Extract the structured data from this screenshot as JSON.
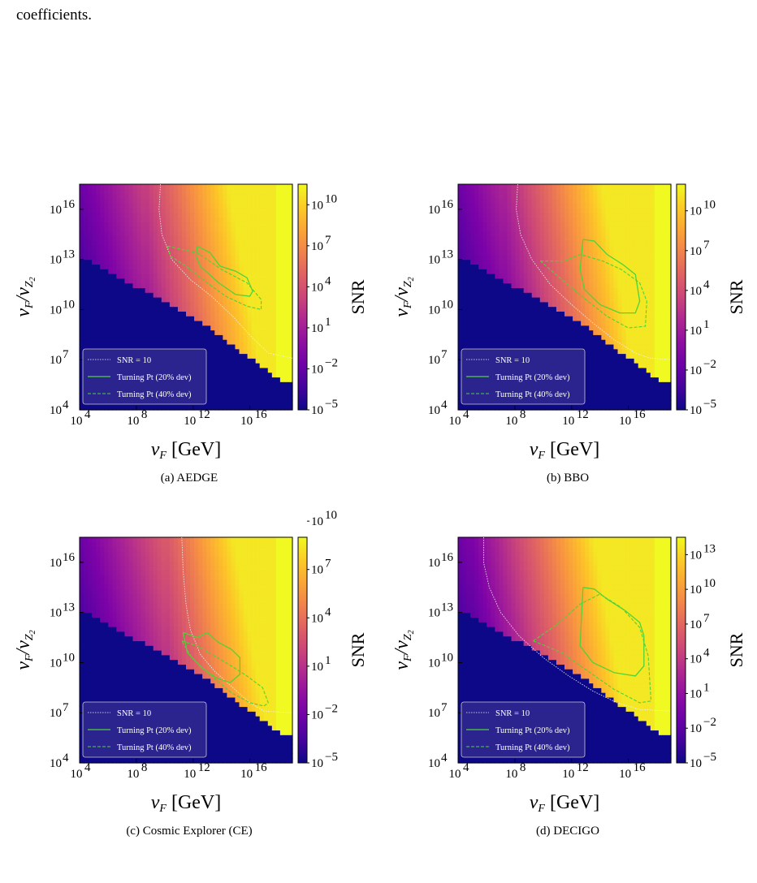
{
  "top_text": "coefficients.",
  "chart_data": [
    {
      "type": "heatmap",
      "caption": "(a) AEDGE",
      "xlabel": "v_F [GeV]",
      "ylabel": "v_F/v_{Z_2}",
      "colorbar_label": "SNR",
      "xlim_log10": [
        4,
        19
      ],
      "ylim_log10": [
        4,
        17.5
      ],
      "x_ticks": [
        {
          "exp": "4"
        },
        {
          "exp": "8"
        },
        {
          "exp": "12"
        },
        {
          "exp": "16"
        }
      ],
      "y_ticks": [
        {
          "exp": "4"
        },
        {
          "exp": "7"
        },
        {
          "exp": "10"
        },
        {
          "exp": "13"
        },
        {
          "exp": "16"
        }
      ],
      "colorbar_ticks": [
        {
          "exp": "−5"
        },
        {
          "exp": "−2"
        },
        {
          "exp": "1"
        },
        {
          "exp": "4"
        },
        {
          "exp": "7"
        },
        {
          "exp": "10"
        }
      ],
      "colorbar_range_log10": [
        -5,
        11.5
      ],
      "colormap": "plasma",
      "legend": {
        "placement": "lower-left",
        "entries": [
          "SNR = 10",
          "Turning Pt (20% dev)",
          "Turning Pt (40% dev)"
        ]
      },
      "snr10_contour": [
        [
          9.7,
          17.5
        ],
        [
          9.6,
          16
        ],
        [
          9.8,
          14.5
        ],
        [
          10.5,
          13
        ],
        [
          11.8,
          11.8
        ],
        [
          13.3,
          10.8
        ],
        [
          14.8,
          9.6
        ],
        [
          16.2,
          8.3
        ],
        [
          17.3,
          7.4
        ],
        [
          19,
          7.1
        ]
      ],
      "turning_20": [
        [
          12.3,
          13.8
        ],
        [
          13.2,
          13.4
        ],
        [
          13.9,
          12.6
        ],
        [
          15,
          12.3
        ],
        [
          15.8,
          11.9
        ],
        [
          16.2,
          11.1
        ],
        [
          16,
          10.8
        ],
        [
          15,
          10.9
        ],
        [
          13.8,
          11.6
        ],
        [
          12.5,
          12.6
        ],
        [
          12.2,
          13.2
        ],
        [
          12.3,
          13.8
        ]
      ],
      "turning_40": [
        [
          10.2,
          13.8
        ],
        [
          11.2,
          13.6
        ],
        [
          12.3,
          13.4
        ],
        [
          14,
          12.4
        ],
        [
          15.8,
          11.6
        ],
        [
          16.8,
          10.6
        ],
        [
          16.8,
          10.0
        ],
        [
          15.8,
          10.2
        ],
        [
          14.3,
          10.8
        ],
        [
          13,
          11.6
        ],
        [
          11.5,
          12.6
        ],
        [
          10.4,
          13.2
        ],
        [
          10.2,
          13.8
        ]
      ]
    },
    {
      "type": "heatmap",
      "caption": "(b) BBO",
      "xlabel": "v_F [GeV]",
      "ylabel": "v_F/v_{Z_2}",
      "colorbar_label": "SNR",
      "xlim_log10": [
        4,
        19
      ],
      "ylim_log10": [
        4,
        17.5
      ],
      "x_ticks": [
        {
          "exp": "4"
        },
        {
          "exp": "8"
        },
        {
          "exp": "12"
        },
        {
          "exp": "16"
        }
      ],
      "y_ticks": [
        {
          "exp": "4"
        },
        {
          "exp": "7"
        },
        {
          "exp": "10"
        },
        {
          "exp": "13"
        },
        {
          "exp": "16"
        }
      ],
      "colorbar_ticks": [
        {
          "exp": "−5"
        },
        {
          "exp": "−2"
        },
        {
          "exp": "1"
        },
        {
          "exp": "4"
        },
        {
          "exp": "7"
        },
        {
          "exp": "10"
        }
      ],
      "colorbar_range_log10": [
        -5,
        12
      ],
      "colormap": "plasma",
      "legend": {
        "placement": "lower-left",
        "entries": [
          "SNR = 10",
          "Turning Pt (20% dev)",
          "Turning Pt (40% dev)"
        ]
      },
      "snr10_contour": [
        [
          8.2,
          17.5
        ],
        [
          8.1,
          16
        ],
        [
          8.4,
          14.5
        ],
        [
          9.2,
          13
        ],
        [
          10.5,
          11.5
        ],
        [
          12,
          10.3
        ],
        [
          13.5,
          9.2
        ],
        [
          15,
          8.2
        ],
        [
          16.5,
          7.4
        ],
        [
          17.5,
          7.1
        ],
        [
          19,
          7
        ]
      ],
      "turning_20": [
        [
          12.8,
          14.2
        ],
        [
          13.6,
          14.1
        ],
        [
          14.5,
          13.3
        ],
        [
          15.6,
          12.7
        ],
        [
          16.5,
          12.1
        ],
        [
          16.8,
          10.5
        ],
        [
          16.5,
          9.8
        ],
        [
          15.4,
          9.8
        ],
        [
          14,
          10.3
        ],
        [
          12.9,
          11.2
        ],
        [
          12.6,
          12.4
        ],
        [
          12.8,
          14.2
        ]
      ],
      "turning_40": [
        [
          9.8,
          12.9
        ],
        [
          11.5,
          12.9
        ],
        [
          12.6,
          13.3
        ],
        [
          14.2,
          12.9
        ],
        [
          15.5,
          12.4
        ],
        [
          16.8,
          11.6
        ],
        [
          17.3,
          10.5
        ],
        [
          17.2,
          9.0
        ],
        [
          16,
          8.9
        ],
        [
          14.5,
          9.6
        ],
        [
          13,
          10.6
        ],
        [
          11.3,
          11.8
        ],
        [
          9.8,
          12.9
        ]
      ]
    },
    {
      "type": "heatmap",
      "caption": "(c) Cosmic Explorer (CE)",
      "xlabel": "v_F [GeV]",
      "ylabel": "v_F/v_{Z_2}",
      "colorbar_label": "SNR",
      "xlim_log10": [
        4,
        19
      ],
      "ylim_log10": [
        4,
        17.5
      ],
      "x_ticks": [
        {
          "exp": "4"
        },
        {
          "exp": "8"
        },
        {
          "exp": "12"
        },
        {
          "exp": "16"
        }
      ],
      "y_ticks": [
        {
          "exp": "4"
        },
        {
          "exp": "7"
        },
        {
          "exp": "10"
        },
        {
          "exp": "13"
        },
        {
          "exp": "16"
        }
      ],
      "colorbar_ticks": [
        {
          "exp": "−5"
        },
        {
          "exp": "−2"
        },
        {
          "exp": "1"
        },
        {
          "exp": "4"
        },
        {
          "exp": "7"
        },
        {
          "exp": "10"
        }
      ],
      "colorbar_range_log10": [
        -5,
        9
      ],
      "colormap": "plasma",
      "legend": {
        "placement": "lower-left",
        "entries": [
          "SNR = 10",
          "Turning Pt (20% dev)",
          "Turning Pt (40% dev)"
        ]
      },
      "snr10_contour": [
        [
          11.2,
          17.5
        ],
        [
          11.3,
          15.5
        ],
        [
          11.5,
          13.5
        ],
        [
          11.8,
          12
        ],
        [
          12.5,
          10.5
        ],
        [
          13.5,
          9.5
        ],
        [
          14.8,
          8.5
        ],
        [
          16,
          7.6
        ],
        [
          17,
          7.1
        ],
        [
          19,
          7
        ]
      ],
      "turning_20": [
        [
          11.3,
          11.8
        ],
        [
          12.3,
          11.5
        ],
        [
          13.0,
          11.8
        ],
        [
          13.8,
          11.2
        ],
        [
          14.7,
          10.8
        ],
        [
          15.3,
          10.3
        ],
        [
          15.3,
          9.3
        ],
        [
          14.6,
          8.8
        ],
        [
          13.6,
          9.1
        ],
        [
          12.6,
          9.7
        ],
        [
          11.6,
          10.6
        ],
        [
          11.3,
          11.8
        ]
      ],
      "turning_40": [
        [
          11.2,
          11.3
        ],
        [
          12.3,
          11.0
        ],
        [
          13.5,
          10.4
        ],
        [
          14.7,
          9.8
        ],
        [
          15.8,
          9.2
        ],
        [
          16.9,
          8.5
        ],
        [
          17.3,
          7.6
        ],
        [
          17,
          7.4
        ],
        [
          16,
          7.6
        ],
        [
          14.7,
          8.2
        ],
        [
          13.3,
          9.2
        ],
        [
          11.9,
          10.3
        ],
        [
          11.2,
          11.3
        ]
      ]
    },
    {
      "type": "heatmap",
      "caption": "(d) DECIGO",
      "xlabel": "v_F [GeV]",
      "ylabel": "v_F/v_{Z_2}",
      "colorbar_label": "SNR",
      "xlim_log10": [
        4,
        19
      ],
      "ylim_log10": [
        4,
        17.5
      ],
      "x_ticks": [
        {
          "exp": "4"
        },
        {
          "exp": "8"
        },
        {
          "exp": "12"
        },
        {
          "exp": "16"
        }
      ],
      "y_ticks": [
        {
          "exp": "4"
        },
        {
          "exp": "7"
        },
        {
          "exp": "10"
        },
        {
          "exp": "13"
        },
        {
          "exp": "16"
        }
      ],
      "colorbar_ticks": [
        {
          "exp": "−5"
        },
        {
          "exp": "−2"
        },
        {
          "exp": "1"
        },
        {
          "exp": "4"
        },
        {
          "exp": "7"
        },
        {
          "exp": "10"
        },
        {
          "exp": "13"
        }
      ],
      "colorbar_range_log10": [
        -5,
        14.5
      ],
      "colormap": "plasma",
      "legend": {
        "placement": "lower-left",
        "entries": [
          "SNR = 10",
          "Turning Pt (20% dev)",
          "Turning Pt (40% dev)"
        ]
      },
      "snr10_contour": [
        [
          5.8,
          17.5
        ],
        [
          5.8,
          16
        ],
        [
          6.2,
          14.5
        ],
        [
          7,
          13
        ],
        [
          8.3,
          11.6
        ],
        [
          10,
          10.3
        ],
        [
          11.8,
          9.2
        ],
        [
          13.5,
          8.3
        ],
        [
          15.2,
          7.6
        ],
        [
          16.8,
          7.2
        ],
        [
          19,
          7.1
        ]
      ],
      "turning_20": [
        [
          12.8,
          14.5
        ],
        [
          13.6,
          14.4
        ],
        [
          14.5,
          13.8
        ],
        [
          15.8,
          13.1
        ],
        [
          16.8,
          12.4
        ],
        [
          17.1,
          11.6
        ],
        [
          17.1,
          9.8
        ],
        [
          16.5,
          9.2
        ],
        [
          15,
          9.4
        ],
        [
          13.5,
          10.0
        ],
        [
          12.6,
          11.0
        ],
        [
          12.7,
          12.8
        ],
        [
          12.8,
          14.5
        ]
      ],
      "turning_40": [
        [
          9.3,
          11.3
        ],
        [
          11,
          12.3
        ],
        [
          12.6,
          13.5
        ],
        [
          14,
          14.1
        ],
        [
          15.5,
          13.3
        ],
        [
          16.8,
          12.1
        ],
        [
          17.4,
          10.4
        ],
        [
          17.6,
          7.7
        ],
        [
          16.8,
          7.6
        ],
        [
          15,
          8.4
        ],
        [
          13.3,
          9.4
        ],
        [
          11.3,
          10.6
        ],
        [
          9.3,
          11.3
        ]
      ]
    }
  ]
}
